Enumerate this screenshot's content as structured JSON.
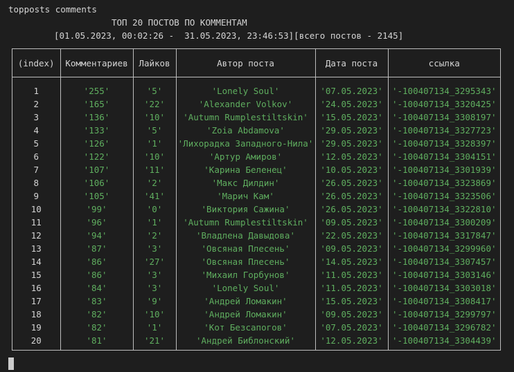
{
  "terminal": {
    "command": "topposts comments",
    "title": "ТОП 20 ПОСТОВ ПО КОММЕНТАМ",
    "range_line": "[01.05.2023, 00:02:26 -  31.05.2023, 23:46:53][всего постов - 2145]"
  },
  "table": {
    "headers": [
      "(index)",
      "Комментариев",
      "Лайков",
      "Автор поста",
      "Дата поста",
      "ссылка"
    ],
    "rows": [
      [
        "1",
        "'255'",
        "'5'",
        "'Lonely Soul'",
        "'07.05.2023'",
        "'-100407134_3295343'"
      ],
      [
        "2",
        "'165'",
        "'22'",
        "'Alexander Volkov'",
        "'24.05.2023'",
        "'-100407134_3320425'"
      ],
      [
        "3",
        "'136'",
        "'10'",
        "'Autumn Rumplestiltskin'",
        "'15.05.2023'",
        "'-100407134_3308197'"
      ],
      [
        "4",
        "'133'",
        "'5'",
        "'Zoia Abdamova'",
        "'29.05.2023'",
        "'-100407134_3327723'"
      ],
      [
        "5",
        "'126'",
        "'1'",
        "'Лихорадка Западного-Нила'",
        "'29.05.2023'",
        "'-100407134_3328397'"
      ],
      [
        "6",
        "'122'",
        "'10'",
        "'Артур Амиров'",
        "'12.05.2023'",
        "'-100407134_3304151'"
      ],
      [
        "7",
        "'107'",
        "'11'",
        "'Карина Беленец'",
        "'10.05.2023'",
        "'-100407134_3301939'"
      ],
      [
        "8",
        "'106'",
        "'2'",
        "'Макс Дилдин'",
        "'26.05.2023'",
        "'-100407134_3323869'"
      ],
      [
        "9",
        "'105'",
        "'41'",
        "'Марич Кам'",
        "'26.05.2023'",
        "'-100407134_3323506'"
      ],
      [
        "10",
        "'99'",
        "'0'",
        "'Виктория Сажина'",
        "'26.05.2023'",
        "'-100407134_3322810'"
      ],
      [
        "11",
        "'96'",
        "'1'",
        "'Autumn Rumplestiltskin'",
        "'09.05.2023'",
        "'-100407134_3300209'"
      ],
      [
        "12",
        "'94'",
        "'2'",
        "'Владлена Давыдова'",
        "'22.05.2023'",
        "'-100407134_3317847'"
      ],
      [
        "13",
        "'87'",
        "'3'",
        "'Овсяная Плесень'",
        "'09.05.2023'",
        "'-100407134_3299960'"
      ],
      [
        "14",
        "'86'",
        "'27'",
        "'Овсяная Плесень'",
        "'14.05.2023'",
        "'-100407134_3307457'"
      ],
      [
        "15",
        "'86'",
        "'3'",
        "'Михаил Горбунов'",
        "'11.05.2023'",
        "'-100407134_3303146'"
      ],
      [
        "16",
        "'84'",
        "'3'",
        "'Lonely Soul'",
        "'11.05.2023'",
        "'-100407134_3303018'"
      ],
      [
        "17",
        "'83'",
        "'9'",
        "'Андрей Ломакин'",
        "'15.05.2023'",
        "'-100407134_3308417'"
      ],
      [
        "18",
        "'82'",
        "'10'",
        "'Андрей Ломакин'",
        "'09.05.2023'",
        "'-100407134_3299797'"
      ],
      [
        "19",
        "'82'",
        "'1'",
        "'Кот Безсапогов'",
        "'07.05.2023'",
        "'-100407134_3296782'"
      ],
      [
        "20",
        "'81'",
        "'21'",
        "'Андрей Библонский'",
        "'12.05.2023'",
        "'-100407134_3304439'"
      ]
    ]
  },
  "colors": {
    "background": "#1e1e1e",
    "text": "#d4d4d4",
    "string": "#5fae5f",
    "border": "#bdbdbd"
  }
}
